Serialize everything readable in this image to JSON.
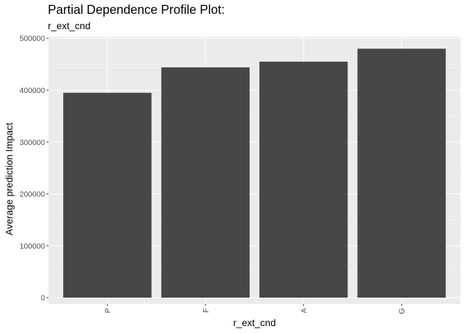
{
  "chart_data": {
    "type": "bar",
    "title": "Partial Dependence Profile Plot:",
    "subtitle": "r_ext_cnd",
    "xlabel": "r_ext_cnd",
    "ylabel": "Average prediction Impact",
    "categories": [
      "P",
      "F",
      "A",
      "G"
    ],
    "values": [
      395000,
      444000,
      455000,
      480000
    ],
    "ylim": [
      -12000,
      503000
    ],
    "yticks": [
      0,
      100000,
      200000,
      300000,
      400000,
      500000
    ],
    "ytick_labels": [
      "0",
      "100000",
      "200000",
      "300000",
      "400000",
      "500000"
    ],
    "grid": true,
    "legend": "none",
    "colors": {
      "panel_background": "#ebebeb",
      "grid_major": "#ffffff",
      "grid_minor": "#f5f5f5",
      "bar_fill": "#474747",
      "tick": "#333333",
      "tick_label": "#4d4d4d"
    }
  }
}
